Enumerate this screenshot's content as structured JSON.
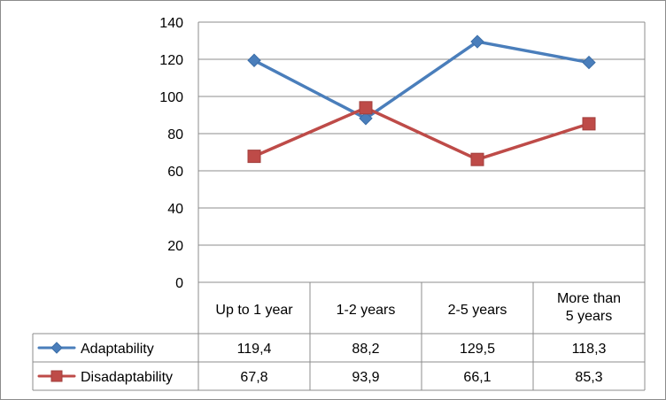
{
  "chart_data": {
    "type": "line",
    "categories": [
      [
        "Up to 1  year"
      ],
      [
        "1-2 years"
      ],
      [
        "2-5 years"
      ],
      [
        "More  than",
        "5 years"
      ]
    ],
    "y_ticks": [
      "0",
      "20",
      "40",
      "60",
      "80",
      "100",
      "120",
      "140"
    ],
    "ylim": [
      0,
      140
    ],
    "grid": true,
    "legend": "bottom-table",
    "series": [
      {
        "name": "Adaptability",
        "values": [
          119.4,
          88.2,
          129.5,
          118.3
        ],
        "value_labels": [
          "119,4",
          "88,2",
          "129,5",
          "118,3"
        ],
        "color": "#4a7ebb",
        "marker": "diamond"
      },
      {
        "name": "Disadaptability",
        "values": [
          67.8,
          93.9,
          66.1,
          85.3
        ],
        "value_labels": [
          "67,8",
          "93,9",
          "66,1",
          "85,3"
        ],
        "color": "#be4b48",
        "marker": "square"
      }
    ]
  }
}
